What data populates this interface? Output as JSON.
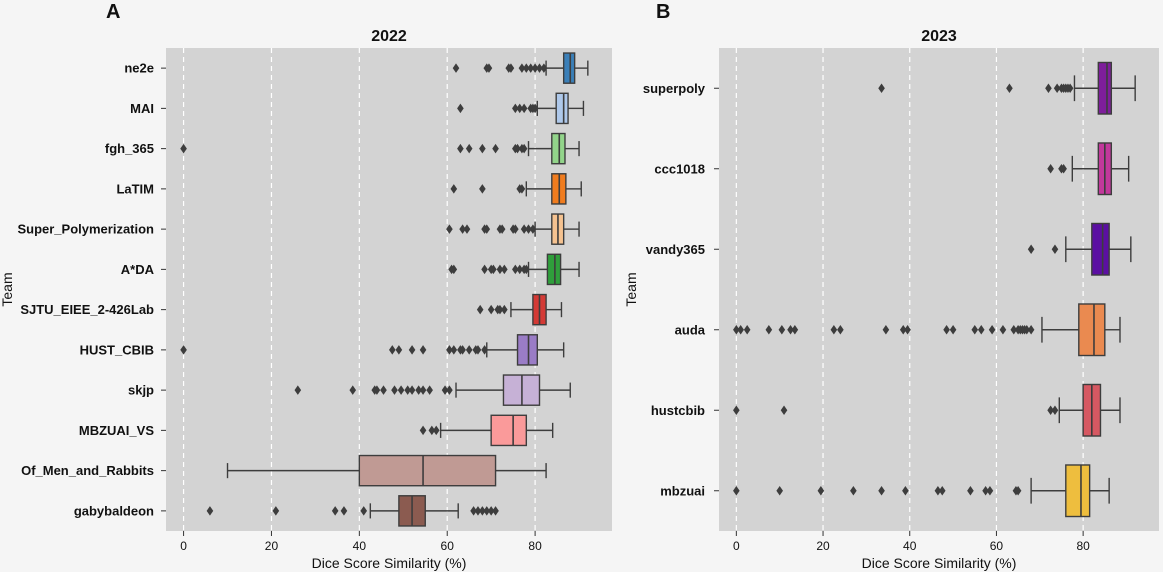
{
  "chart_data": [
    {
      "type": "box",
      "panel_label": "A",
      "title": "2022",
      "xlabel": "Dice Score Similarity (%)",
      "ylabel": "Team",
      "xlim": [
        -4,
        97.5
      ],
      "xticks": [
        0,
        20,
        40,
        60,
        80
      ],
      "grid": "vertical dashed",
      "categories": [
        "ne2e",
        "MAI",
        "fgh_365",
        "LaTIM",
        "Super_Polymerization",
        "A*DA",
        "SJTU_EIEE_2-426Lab",
        "HUST_CBIB",
        "skjp",
        "MBZUAI_VS",
        "Of_Men_and_Rabbits",
        "gabybaldeon"
      ],
      "boxes": [
        {
          "min": 82.5,
          "q1": 86.5,
          "median": 88,
          "q3": 89,
          "max": 92,
          "color": "#3a7fb8",
          "outliers": [
            62,
            69,
            69.5,
            74,
            74.5,
            77,
            78,
            79,
            80,
            81,
            82
          ]
        },
        {
          "min": 80.5,
          "q1": 84.8,
          "median": 86.5,
          "q3": 87.5,
          "max": 91,
          "color": "#aec8ea",
          "outliers": [
            63,
            75.5,
            76.5,
            77.5,
            79,
            79.5,
            80
          ]
        },
        {
          "min": 78.5,
          "q1": 83.8,
          "median": 85.5,
          "q3": 86.8,
          "max": 90,
          "color": "#92d48a",
          "outliers": [
            0,
            63,
            65,
            68,
            71,
            75.5,
            76,
            77,
            77.5
          ]
        },
        {
          "min": 78,
          "q1": 83.8,
          "median": 85.5,
          "q3": 87,
          "max": 90.5,
          "color": "#f07c1e",
          "outliers": [
            61.5,
            68,
            76.5,
            77
          ]
        },
        {
          "min": 80,
          "q1": 83.8,
          "median": 85.2,
          "q3": 86.5,
          "max": 90,
          "color": "#f5c290",
          "outliers": [
            60.5,
            63.5,
            64.5,
            68.5,
            69,
            72,
            72.5,
            75,
            75.5,
            77.5,
            78.5,
            79.5
          ]
        },
        {
          "min": 78.5,
          "q1": 82.8,
          "median": 84.5,
          "q3": 85.8,
          "max": 90,
          "color": "#2f9e3b",
          "outliers": [
            61,
            61.5,
            68.5,
            70,
            70.5,
            72,
            73,
            75.5,
            76.5,
            77.5,
            78
          ]
        },
        {
          "min": 74.5,
          "q1": 79.5,
          "median": 81,
          "q3": 82.5,
          "max": 86,
          "color": "#d43a35",
          "outliers": [
            67.5,
            70,
            71.5,
            72,
            73
          ]
        },
        {
          "min": 69,
          "q1": 76,
          "median": 78.5,
          "q3": 80.5,
          "max": 86.5,
          "color": "#9a7cc6",
          "outliers": [
            0,
            47.5,
            49,
            52,
            54.5,
            60.5,
            61.5,
            63,
            63.5,
            65,
            66.5,
            67,
            68.5
          ]
        },
        {
          "min": 62,
          "q1": 72.8,
          "median": 77,
          "q3": 81,
          "max": 88,
          "color": "#c6b1d6",
          "outliers": [
            26,
            38.5,
            43.5,
            44,
            45.5,
            48,
            49.5,
            51,
            52,
            53.5,
            54.5,
            56,
            59.5,
            60.5
          ]
        },
        {
          "min": 58.5,
          "q1": 70,
          "median": 75,
          "q3": 78,
          "max": 84,
          "color": "#fa9a9a",
          "outliers": [
            54.5,
            56.5,
            57.5
          ]
        },
        {
          "min": 10,
          "q1": 40,
          "median": 54.5,
          "q3": 71,
          "max": 82.5,
          "color": "#c09a94",
          "outliers": []
        },
        {
          "min": 42.5,
          "q1": 49,
          "median": 52,
          "q3": 55,
          "max": 62.5,
          "color": "#8b5b50",
          "outliers": [
            6,
            21,
            34.5,
            36.5,
            41,
            66,
            67,
            68,
            69,
            70,
            71
          ]
        }
      ]
    },
    {
      "type": "box",
      "panel_label": "B",
      "title": "2023",
      "xlabel": "Dice Score Similarity (%)",
      "ylabel": "Team",
      "xlim": [
        -4,
        97.5
      ],
      "xticks": [
        0,
        20,
        40,
        60,
        80
      ],
      "grid": "vertical dashed",
      "categories": [
        "superpoly",
        "ccc1018",
        "vandy365",
        "auda",
        "hustcbib",
        "mbzuai"
      ],
      "boxes": [
        {
          "min": 78,
          "q1": 83.5,
          "median": 85.5,
          "q3": 86.5,
          "max": 92,
          "color": "#7e1e9b",
          "outliers": [
            33.5,
            63,
            72,
            74,
            75,
            75.5,
            76,
            76.5,
            77
          ]
        },
        {
          "min": 77.5,
          "q1": 83.5,
          "median": 85,
          "q3": 86.5,
          "max": 90.5,
          "color": "#c2389b",
          "outliers": [
            72.5,
            75,
            75.5
          ]
        },
        {
          "min": 76,
          "q1": 82,
          "median": 84.5,
          "q3": 86,
          "max": 91,
          "color": "#5b0fa2",
          "outliers": [
            68,
            73.5
          ]
        },
        {
          "min": 70.5,
          "q1": 79,
          "median": 82.5,
          "q3": 85,
          "max": 88.5,
          "color": "#ea8a50",
          "outliers": [
            0,
            1,
            2.5,
            7.5,
            10.5,
            12.5,
            13.5,
            22.5,
            24,
            34.5,
            38.5,
            39.5,
            48.5,
            50,
            55,
            56.5,
            59,
            61.5,
            64,
            65,
            65.5,
            66,
            66.5,
            67,
            68
          ]
        },
        {
          "min": 74.5,
          "q1": 80,
          "median": 82,
          "q3": 84,
          "max": 88.5,
          "color": "#d65862",
          "outliers": [
            0,
            11,
            72.5,
            73.5
          ]
        },
        {
          "min": 68,
          "q1": 76,
          "median": 79.5,
          "q3": 81.5,
          "max": 86,
          "color": "#eebe3e",
          "outliers": [
            0,
            10,
            19.5,
            27,
            33.5,
            39,
            46.5,
            47.5,
            54,
            57.5,
            58.5,
            64.5,
            65
          ]
        }
      ]
    }
  ]
}
